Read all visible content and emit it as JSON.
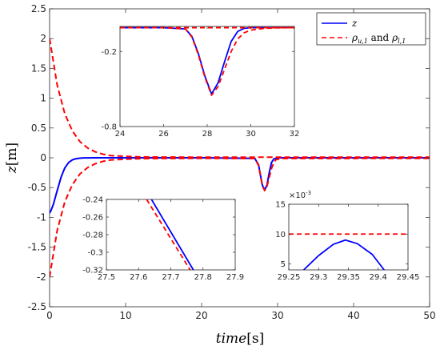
{
  "chart_data": [
    {
      "type": "line",
      "xlabel_main": "time",
      "xlabel_unit": "[s]",
      "ylabel_main": "z",
      "ylabel_unit": "[m]",
      "xlim": [
        0,
        50
      ],
      "ylim": [
        -2.5,
        2.5
      ],
      "xticks": [
        0,
        10,
        20,
        30,
        40,
        50
      ],
      "yticks": [
        -2.5,
        -2,
        -1.5,
        -1,
        -0.5,
        0,
        0.5,
        1,
        1.5,
        2,
        2.5
      ],
      "xtick_labels": [
        "0",
        "10",
        "20",
        "30",
        "40",
        "50"
      ],
      "ytick_labels": [
        "-2.5",
        "-2",
        "-1.5",
        "-1",
        "-0.5",
        "0",
        "0.5",
        "1",
        "1.5",
        "2",
        "2.5"
      ],
      "legend_placement": "top-right",
      "series": [
        {
          "name": "z",
          "color": "#0000ff",
          "style": "solid",
          "x": [
            0,
            0.2,
            0.5,
            1,
            1.5,
            2,
            2.5,
            3,
            3.5,
            4,
            4.5,
            5,
            6,
            8,
            10,
            20,
            27,
            27.5,
            27.8,
            28,
            28.3,
            28.6,
            28.9,
            29.2,
            29.5,
            30,
            35,
            50
          ],
          "y": [
            -0.93,
            -0.88,
            -0.78,
            -0.55,
            -0.33,
            -0.17,
            -0.08,
            -0.035,
            -0.015,
            -0.006,
            -0.002,
            -0.001,
            0,
            0,
            0,
            0,
            -0.01,
            -0.12,
            -0.33,
            -0.46,
            -0.54,
            -0.46,
            -0.25,
            -0.08,
            -0.02,
            0,
            0,
            0
          ]
        },
        {
          "name": "upper bound",
          "color": "#ff0000",
          "style": "dashed",
          "x": [
            0,
            1,
            2,
            3,
            4,
            5,
            6,
            7,
            8,
            10,
            12,
            15,
            20,
            27,
            50
          ],
          "y": [
            2.0,
            1.22,
            0.74,
            0.45,
            0.27,
            0.165,
            0.1,
            0.061,
            0.037,
            0.024,
            0.015,
            0.012,
            0.01,
            0.01,
            0.01
          ]
        },
        {
          "name": "lower bound",
          "color": "#ff0000",
          "style": "dashed",
          "x": [
            0,
            1,
            2,
            3,
            4,
            5,
            6,
            7,
            8,
            10,
            12,
            15,
            20,
            27,
            27.5,
            27.8,
            28,
            28.3,
            28.6,
            28.9,
            29.2,
            29.5,
            29.8,
            30.5,
            50
          ],
          "y": [
            -2.0,
            -1.22,
            -0.74,
            -0.45,
            -0.27,
            -0.165,
            -0.1,
            -0.061,
            -0.037,
            -0.024,
            -0.015,
            -0.012,
            -0.01,
            -0.012,
            -0.13,
            -0.34,
            -0.47,
            -0.55,
            -0.48,
            -0.33,
            -0.18,
            -0.08,
            -0.03,
            -0.012,
            -0.01
          ]
        }
      ]
    },
    {
      "type": "line",
      "inset": "top",
      "xlim": [
        24,
        32
      ],
      "ylim": [
        -0.8,
        0
      ],
      "xticks": [
        24,
        26,
        28,
        30,
        32
      ],
      "yticks": [
        -0.2,
        -0.8
      ],
      "xtick_labels": [
        "24",
        "26",
        "28",
        "30",
        "32"
      ],
      "ytick_labels": [
        "-0.2",
        "-0.8"
      ],
      "series": [
        {
          "name": "z",
          "color": "#0000ff",
          "style": "solid",
          "x": [
            24,
            26,
            27,
            27.3,
            27.6,
            27.9,
            28.2,
            28.5,
            28.8,
            29.1,
            29.4,
            29.7,
            30,
            32
          ],
          "y": [
            -0.01,
            -0.01,
            -0.02,
            -0.08,
            -0.22,
            -0.4,
            -0.54,
            -0.45,
            -0.28,
            -0.12,
            -0.04,
            -0.015,
            -0.01,
            -0.01
          ]
        },
        {
          "name": "upper bound",
          "color": "#ff0000",
          "style": "dashed",
          "x": [
            24,
            32
          ],
          "y": [
            -0.01,
            -0.01
          ]
        },
        {
          "name": "lower bound",
          "color": "#ff0000",
          "style": "dashed",
          "x": [
            24,
            26,
            27,
            27.3,
            27.6,
            27.9,
            28.2,
            28.5,
            28.8,
            29.1,
            29.4,
            29.7,
            30,
            30.5,
            31,
            32
          ],
          "y": [
            -0.01,
            -0.01,
            -0.02,
            -0.085,
            -0.23,
            -0.41,
            -0.55,
            -0.48,
            -0.34,
            -0.2,
            -0.1,
            -0.05,
            -0.03,
            -0.018,
            -0.012,
            -0.01
          ]
        }
      ]
    },
    {
      "type": "line",
      "inset": "bottom-left",
      "xlim": [
        27.5,
        27.9
      ],
      "ylim": [
        -0.32,
        -0.24
      ],
      "xticks": [
        27.5,
        27.6,
        27.7,
        27.8,
        27.9
      ],
      "yticks": [
        -0.24,
        -0.26,
        -0.28,
        -0.3,
        -0.32
      ],
      "xtick_labels": [
        "27.5",
        "27.6",
        "27.7",
        "27.8",
        "27.9"
      ],
      "ytick_labels": [
        "-0.24",
        "-0.26",
        "-0.28",
        "-0.3",
        "-0.32"
      ],
      "series": [
        {
          "name": "z",
          "color": "#0000ff",
          "style": "solid",
          "x": [
            27.64,
            27.77
          ],
          "y": [
            -0.24,
            -0.32
          ]
        },
        {
          "name": "lower bound",
          "color": "#ff0000",
          "style": "dashed",
          "x": [
            27.625,
            27.76
          ],
          "y": [
            -0.24,
            -0.32
          ]
        }
      ]
    },
    {
      "type": "line",
      "inset": "bottom-right",
      "xlim": [
        29.25,
        29.45
      ],
      "ylim": [
        0.004,
        0.015
      ],
      "xticks": [
        29.25,
        29.3,
        29.35,
        29.4,
        29.45
      ],
      "yticks": [
        0.005,
        0.01,
        0.015
      ],
      "xtick_labels": [
        "29.25",
        "29.3",
        "29.35",
        "29.4",
        "29.45"
      ],
      "ytick_labels": [
        "5",
        "10",
        "15"
      ],
      "exponent_label": "×10",
      "exponent_power": "-3",
      "series": [
        {
          "name": "z",
          "color": "#0000ff",
          "style": "solid",
          "x": [
            29.275,
            29.3,
            29.325,
            29.345,
            29.365,
            29.39,
            29.41
          ],
          "y": [
            0.004,
            0.0064,
            0.0083,
            0.009,
            0.0084,
            0.0066,
            0.004
          ]
        },
        {
          "name": "upper bound",
          "color": "#ff0000",
          "style": "dashed",
          "x": [
            29.25,
            29.45
          ],
          "y": [
            0.01,
            0.01
          ]
        }
      ]
    }
  ],
  "legend": {
    "items": [
      {
        "label": "z",
        "color": "#0000ff",
        "style": "solid"
      },
      {
        "label_parts": [
          "ρ",
          "u,1",
          " and ",
          "ρ",
          "l,1"
        ],
        "color": "#ff0000",
        "style": "dashed"
      }
    ]
  }
}
